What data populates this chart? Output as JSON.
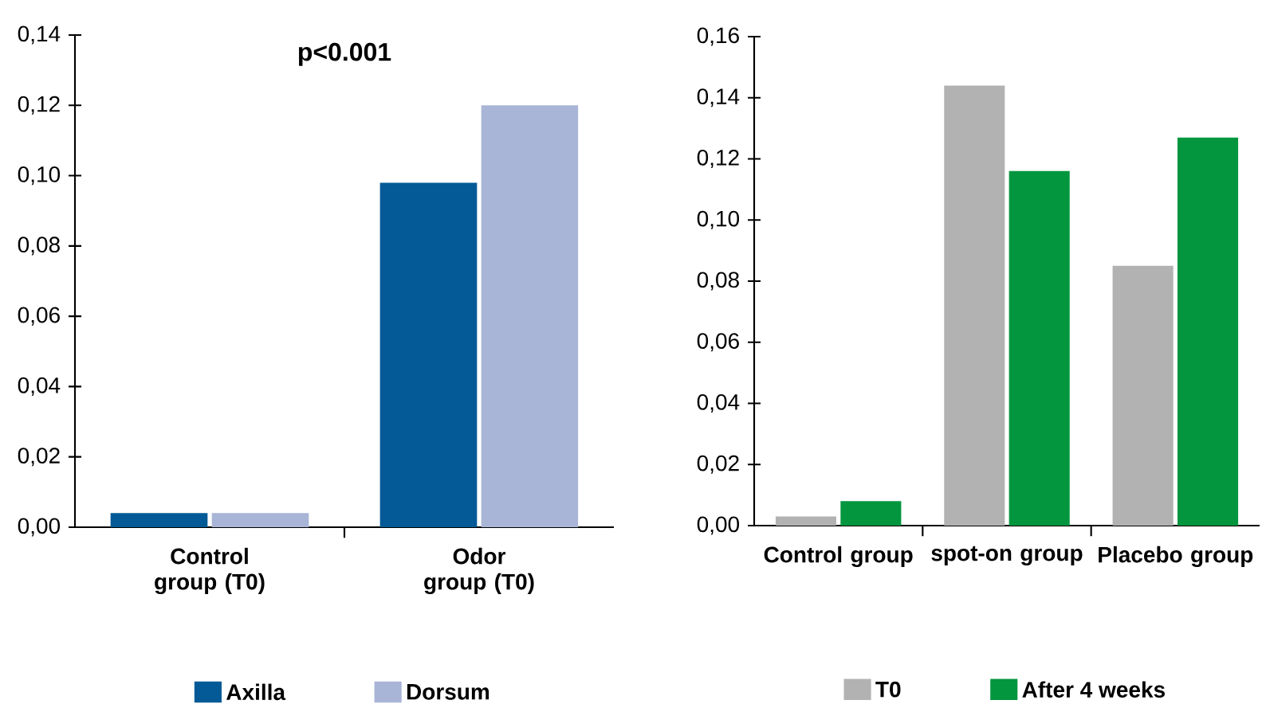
{
  "chart_data": [
    {
      "type": "bar",
      "categories": [
        "Control group (T0)",
        "Odor group (T0)"
      ],
      "series": [
        {
          "name": "Axilla",
          "color": "#035a96",
          "values": [
            0.004,
            0.098
          ]
        },
        {
          "name": "Dorsum",
          "color": "#a9b5d6",
          "values": [
            0.004,
            0.12
          ]
        }
      ],
      "ylim": [
        0,
        0.14
      ],
      "yticks": [
        {
          "value": 0,
          "label": "0,00"
        },
        {
          "value": 0.02,
          "label": "0,02"
        },
        {
          "value": 0.04,
          "label": "0,04"
        },
        {
          "value": 0.06,
          "label": "0,06"
        },
        {
          "value": 0.08,
          "label": "0,08"
        },
        {
          "value": 0.1,
          "label": "0,10"
        },
        {
          "value": 0.12,
          "label": "0,12"
        },
        {
          "value": 0.14,
          "label": "0,14"
        }
      ],
      "annotations": [
        "p<0.001"
      ],
      "legend": "bottom"
    },
    {
      "type": "bar",
      "categories": [
        "Control group",
        "spot-on group",
        "Placebo group"
      ],
      "series": [
        {
          "name": "T0",
          "color": "#b2b2b2",
          "values": [
            0.003,
            0.144,
            0.085
          ]
        },
        {
          "name": "After 4 weeks",
          "color": "#03963e",
          "values": [
            0.008,
            0.116,
            0.127
          ]
        }
      ],
      "ylim": [
        0,
        0.16
      ],
      "yticks": [
        {
          "value": 0,
          "label": "0,00"
        },
        {
          "value": 0.02,
          "label": "0,02"
        },
        {
          "value": 0.04,
          "label": "0,04"
        },
        {
          "value": 0.06,
          "label": "0,06"
        },
        {
          "value": 0.08,
          "label": "0,08"
        },
        {
          "value": 0.1,
          "label": "0,10"
        },
        {
          "value": 0.12,
          "label": "0,12"
        },
        {
          "value": 0.14,
          "label": "0,14"
        },
        {
          "value": 0.16,
          "label": "0,16"
        }
      ],
      "legend": "bottom"
    }
  ]
}
